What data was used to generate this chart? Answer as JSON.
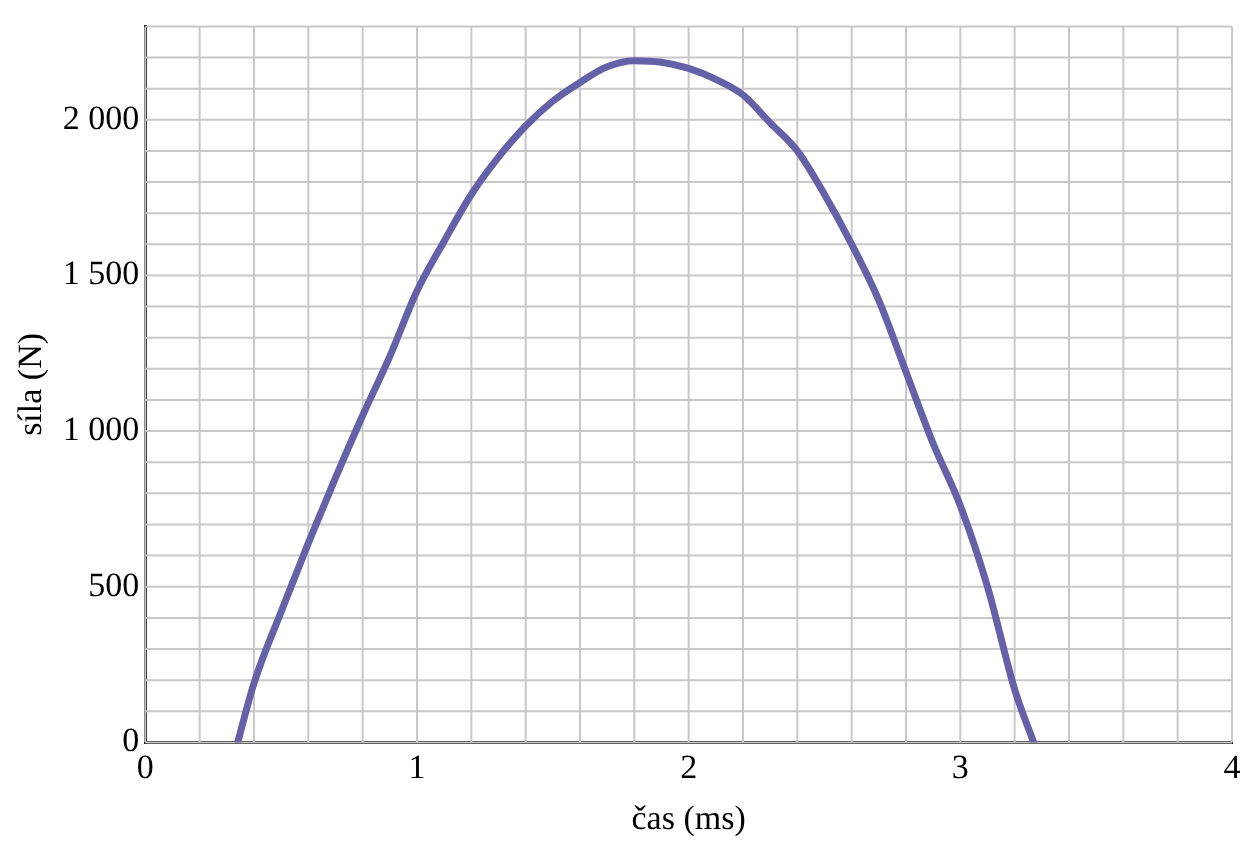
{
  "chart_data": {
    "type": "line",
    "xlabel": "čas (ms)",
    "ylabel": "síla (N)",
    "x": [
      0.34,
      0.4,
      0.5,
      0.6,
      0.7,
      0.8,
      0.9,
      1.0,
      1.1,
      1.2,
      1.3,
      1.4,
      1.5,
      1.6,
      1.7,
      1.8,
      1.9,
      2.0,
      2.1,
      2.2,
      2.3,
      2.4,
      2.5,
      2.6,
      2.7,
      2.8,
      2.9,
      3.0,
      3.1,
      3.2,
      3.27
    ],
    "series": [
      {
        "color": "#6561a8",
        "values": [
          0,
          190,
          420,
          640,
          850,
          1050,
          1240,
          1450,
          1610,
          1760,
          1880,
          1980,
          2060,
          2120,
          2170,
          2190,
          2185,
          2165,
          2130,
          2080,
          1990,
          1900,
          1760,
          1600,
          1420,
          1190,
          960,
          760,
          500,
          170,
          0
        ]
      }
    ],
    "xlim": [
      0,
      4
    ],
    "ylim": [
      0,
      2300
    ],
    "xticks": [
      0,
      {
        "value": 0.2,
        "label": null
      },
      {
        "value": 0.4,
        "label": null
      },
      {
        "value": 0.6,
        "label": null
      },
      {
        "value": 0.8,
        "label": null
      },
      1,
      {
        "value": 1.2,
        "label": null
      },
      {
        "value": 1.4,
        "label": null
      },
      {
        "value": 1.6,
        "label": null
      },
      {
        "value": 1.8,
        "label": null
      },
      2,
      {
        "value": 2.2,
        "label": null
      },
      {
        "value": 2.4,
        "label": null
      },
      {
        "value": 2.6,
        "label": null
      },
      {
        "value": 2.8,
        "label": null
      },
      3,
      {
        "value": 3.2,
        "label": null
      },
      {
        "value": 3.4,
        "label": null
      },
      {
        "value": 3.6,
        "label": null
      },
      {
        "value": 3.8,
        "label": null
      },
      4
    ],
    "yticks": [
      0,
      {
        "value": 100,
        "label": null
      },
      {
        "value": 200,
        "label": null
      },
      {
        "value": 300,
        "label": null
      },
      {
        "value": 400,
        "label": null
      },
      500,
      {
        "value": 600,
        "label": null
      },
      {
        "value": 700,
        "label": null
      },
      {
        "value": 800,
        "label": null
      },
      {
        "value": 900,
        "label": null
      },
      {
        "value": 1000,
        "label": "1 000"
      },
      {
        "value": 1100,
        "label": null
      },
      {
        "value": 1200,
        "label": null
      },
      {
        "value": 1300,
        "label": null
      },
      {
        "value": 1400,
        "label": null
      },
      {
        "value": 1500,
        "label": "1 500"
      },
      {
        "value": 1600,
        "label": null
      },
      {
        "value": 1700,
        "label": null
      },
      {
        "value": 1800,
        "label": null
      },
      {
        "value": 1900,
        "label": null
      },
      {
        "value": 2000,
        "label": "2 000"
      },
      {
        "value": 2100,
        "label": null
      },
      {
        "value": 2200,
        "label": null
      },
      {
        "value": 2300,
        "label": null
      }
    ],
    "grid": true,
    "legend": false,
    "marker": "none",
    "line_style": "solid"
  }
}
